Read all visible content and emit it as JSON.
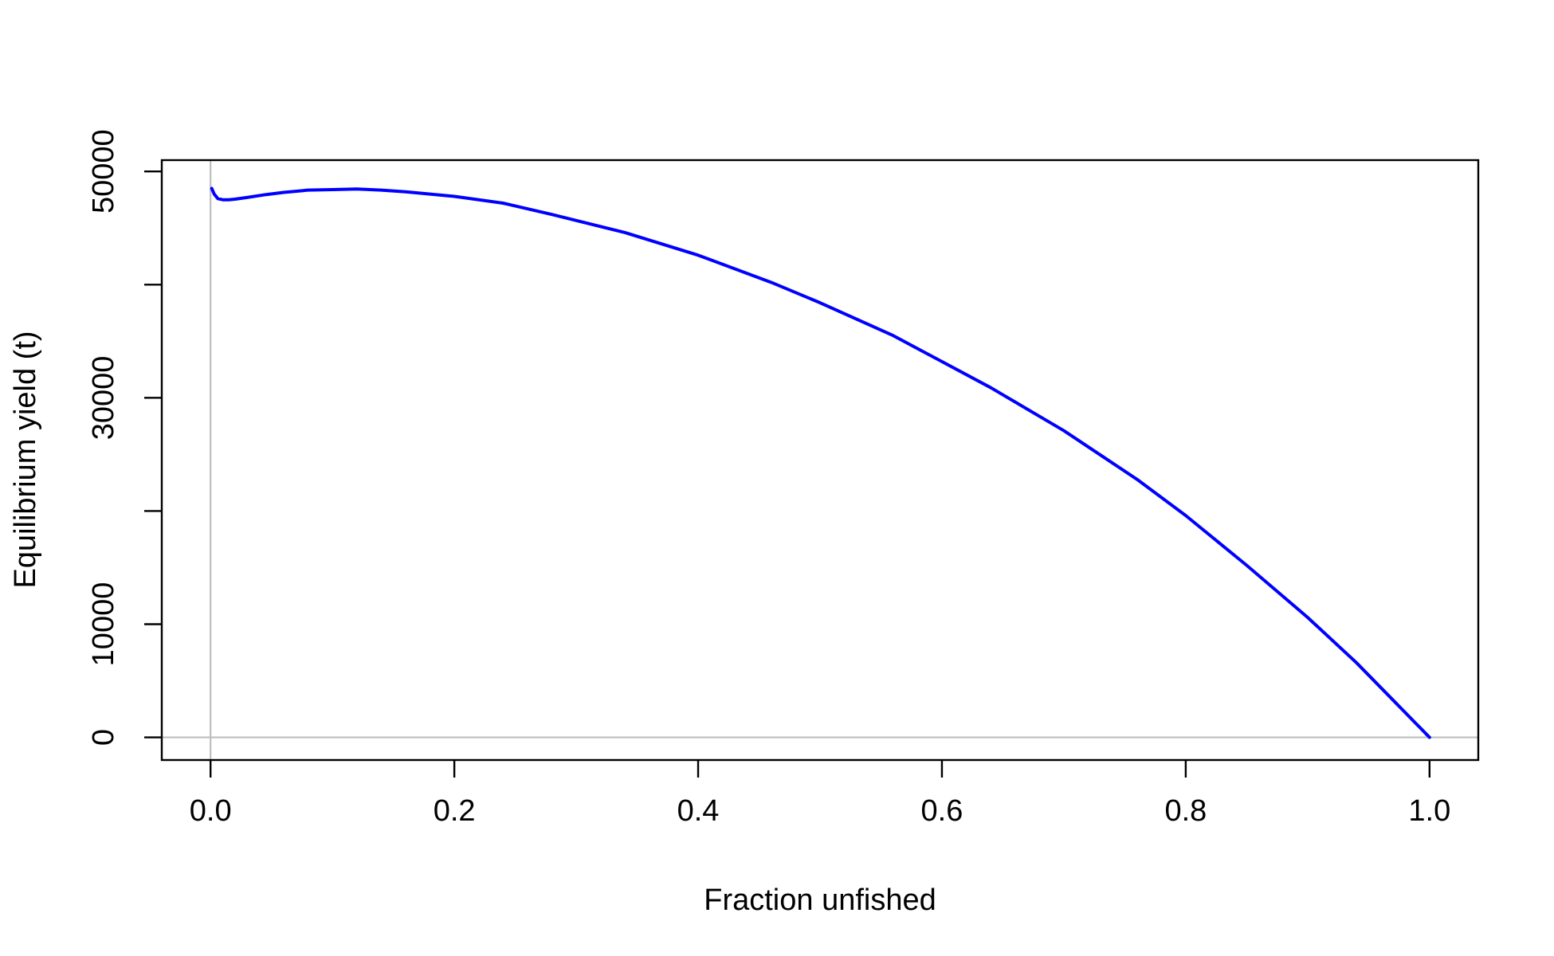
{
  "chart_data": {
    "type": "line",
    "title": "",
    "xlabel": "Fraction unfished",
    "ylabel": "Equilibrium yield (t)",
    "xlim": [
      -0.04,
      1.04
    ],
    "ylim": [
      -2000,
      51000
    ],
    "x_ticks": [
      0.0,
      0.2,
      0.4,
      0.6,
      0.8,
      1.0
    ],
    "x_tick_labels": [
      "0.0",
      "0.2",
      "0.4",
      "0.6",
      "0.8",
      "1.0"
    ],
    "y_ticks": [
      0,
      10000,
      20000,
      30000,
      40000,
      50000
    ],
    "y_tick_labels": [
      "0",
      "10000",
      "",
      "30000",
      "",
      "50000"
    ],
    "reference_lines": {
      "vertical_x": 0,
      "horizontal_y": 0,
      "color": "#bebebe"
    },
    "grid": false,
    "legend": "none",
    "series": [
      {
        "color": "#0000ff",
        "x": [
          0.001,
          0.003,
          0.006,
          0.01,
          0.015,
          0.02,
          0.03,
          0.045,
          0.06,
          0.08,
          0.1,
          0.12,
          0.14,
          0.16,
          0.18,
          0.2,
          0.24,
          0.28,
          0.34,
          0.4,
          0.46,
          0.5,
          0.56,
          0.6,
          0.64,
          0.7,
          0.76,
          0.8,
          0.85,
          0.9,
          0.94,
          0.97,
          0.99,
          1.0
        ],
        "y": [
          48500,
          48000,
          47600,
          47500,
          47500,
          47550,
          47700,
          47950,
          48150,
          48350,
          48400,
          48450,
          48350,
          48200,
          48000,
          47800,
          47200,
          46200,
          44600,
          42600,
          40200,
          38400,
          35500,
          33200,
          30900,
          27100,
          22800,
          19600,
          15200,
          10600,
          6600,
          3300,
          1100,
          0
        ]
      }
    ]
  }
}
